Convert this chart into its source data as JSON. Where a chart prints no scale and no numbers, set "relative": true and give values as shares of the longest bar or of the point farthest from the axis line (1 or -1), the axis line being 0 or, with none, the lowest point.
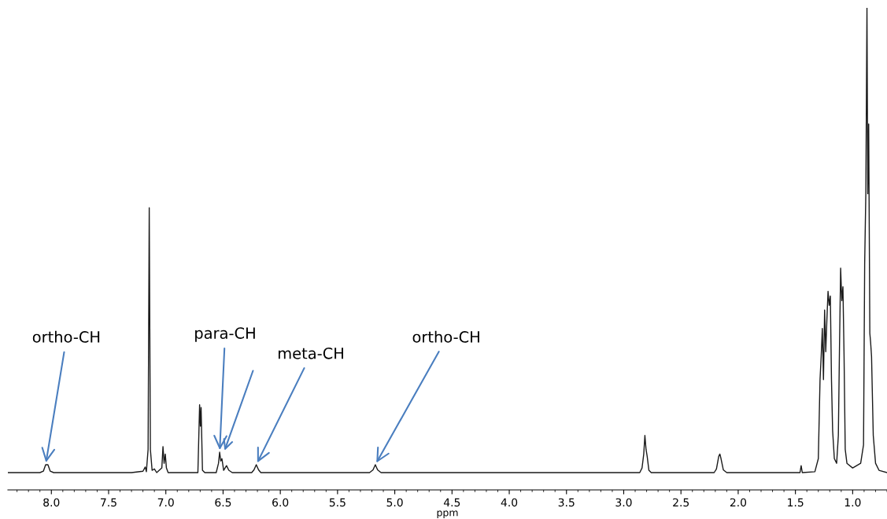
{
  "chart_data": {
    "type": "line",
    "relative": true,
    "xlabel": "ppm",
    "xlim": [
      8.38,
      0.7
    ],
    "xticks": [
      {
        "value": 8,
        "label": "8.0"
      },
      7.5,
      {
        "value": 7,
        "label": "7.0"
      },
      6.5,
      {
        "value": 6,
        "label": "6.0"
      },
      5.5,
      {
        "value": 5,
        "label": "5.0"
      },
      4.5,
      {
        "value": 4,
        "label": "4.0"
      },
      3.5,
      {
        "value": 3,
        "label": "3.0"
      },
      2.5,
      {
        "value": 2,
        "label": "2.0"
      },
      1.5,
      {
        "value": 1,
        "label": "1.0"
      }
    ],
    "tick_labels": "x",
    "grid": false,
    "legend": false,
    "marker": "none",
    "line_style": "solid",
    "series": [
      {
        "color": "#1a1a1a",
        "x": [
          8.38,
          8.1,
          8.07,
          8.05,
          8.03,
          8.01,
          7.98,
          7.3,
          7.2,
          7.18,
          7.17,
          7.155,
          7.145,
          7.135,
          7.12,
          7.1,
          7.08,
          7.035,
          7.025,
          7.015,
          7.005,
          6.995,
          6.98,
          6.72,
          6.705,
          6.698,
          6.692,
          6.68,
          6.66,
          6.56,
          6.54,
          6.53,
          6.52,
          6.51,
          6.495,
          6.47,
          6.45,
          6.42,
          6.25,
          6.23,
          6.21,
          6.19,
          6.17,
          5.22,
          5.19,
          5.17,
          5.15,
          5.12,
          2.86,
          2.84,
          2.825,
          2.815,
          2.805,
          2.795,
          2.78,
          2.76,
          2.21,
          2.19,
          2.17,
          2.16,
          2.15,
          2.13,
          2.1,
          1.46,
          1.45,
          1.44,
          1.33,
          1.3,
          1.285,
          1.275,
          1.265,
          1.255,
          1.245,
          1.235,
          1.225,
          1.215,
          1.205,
          1.195,
          1.185,
          1.175,
          1.16,
          1.14,
          1.125,
          1.115,
          1.105,
          1.095,
          1.085,
          1.075,
          1.065,
          1.05,
          1.0,
          0.93,
          0.905,
          0.895,
          0.885,
          0.875,
          0.868,
          0.86,
          0.85,
          0.843,
          0.835,
          0.82,
          0.8,
          0.77,
          0.7
        ],
        "values": [
          0,
          0,
          0.003,
          0.017,
          0.017,
          0.003,
          0,
          0,
          0.003,
          0.012,
          0.002,
          0.05,
          0.57,
          0.05,
          0.005,
          0.008,
          0,
          0.01,
          0.056,
          0.02,
          0.04,
          0.01,
          0,
          0,
          0.146,
          0.1,
          0.14,
          0.005,
          0,
          0,
          0.02,
          0.044,
          0.025,
          0.03,
          0.005,
          0.015,
          0.005,
          0,
          0,
          0.006,
          0.017,
          0.006,
          0,
          0,
          0.006,
          0.017,
          0.006,
          0,
          0,
          0.01,
          0.04,
          0.08,
          0.05,
          0.035,
          0.005,
          0,
          0,
          0.008,
          0.035,
          0.04,
          0.03,
          0.006,
          0,
          0,
          0.015,
          0,
          0.002,
          0.03,
          0.2,
          0.25,
          0.31,
          0.2,
          0.35,
          0.26,
          0.33,
          0.39,
          0.36,
          0.38,
          0.2,
          0.09,
          0.03,
          0.02,
          0.08,
          0.27,
          0.44,
          0.37,
          0.4,
          0.25,
          0.05,
          0.02,
          0.01,
          0.02,
          0.06,
          0.45,
          0.6,
          1.0,
          0.6,
          0.75,
          0.3,
          0.28,
          0.25,
          0.08,
          0.02,
          0.005,
          0
        ]
      }
    ],
    "annotations": [
      {
        "text": "ortho-CH",
        "x": 8.05,
        "y": 0.017
      },
      {
        "text": "para-CH",
        "x": 6.53,
        "y": 0.044
      },
      {
        "text": "meta-CH",
        "x": 6.21,
        "y": 0.017
      },
      {
        "text": "ortho-CH",
        "x": 5.17,
        "y": 0.017
      }
    ]
  }
}
